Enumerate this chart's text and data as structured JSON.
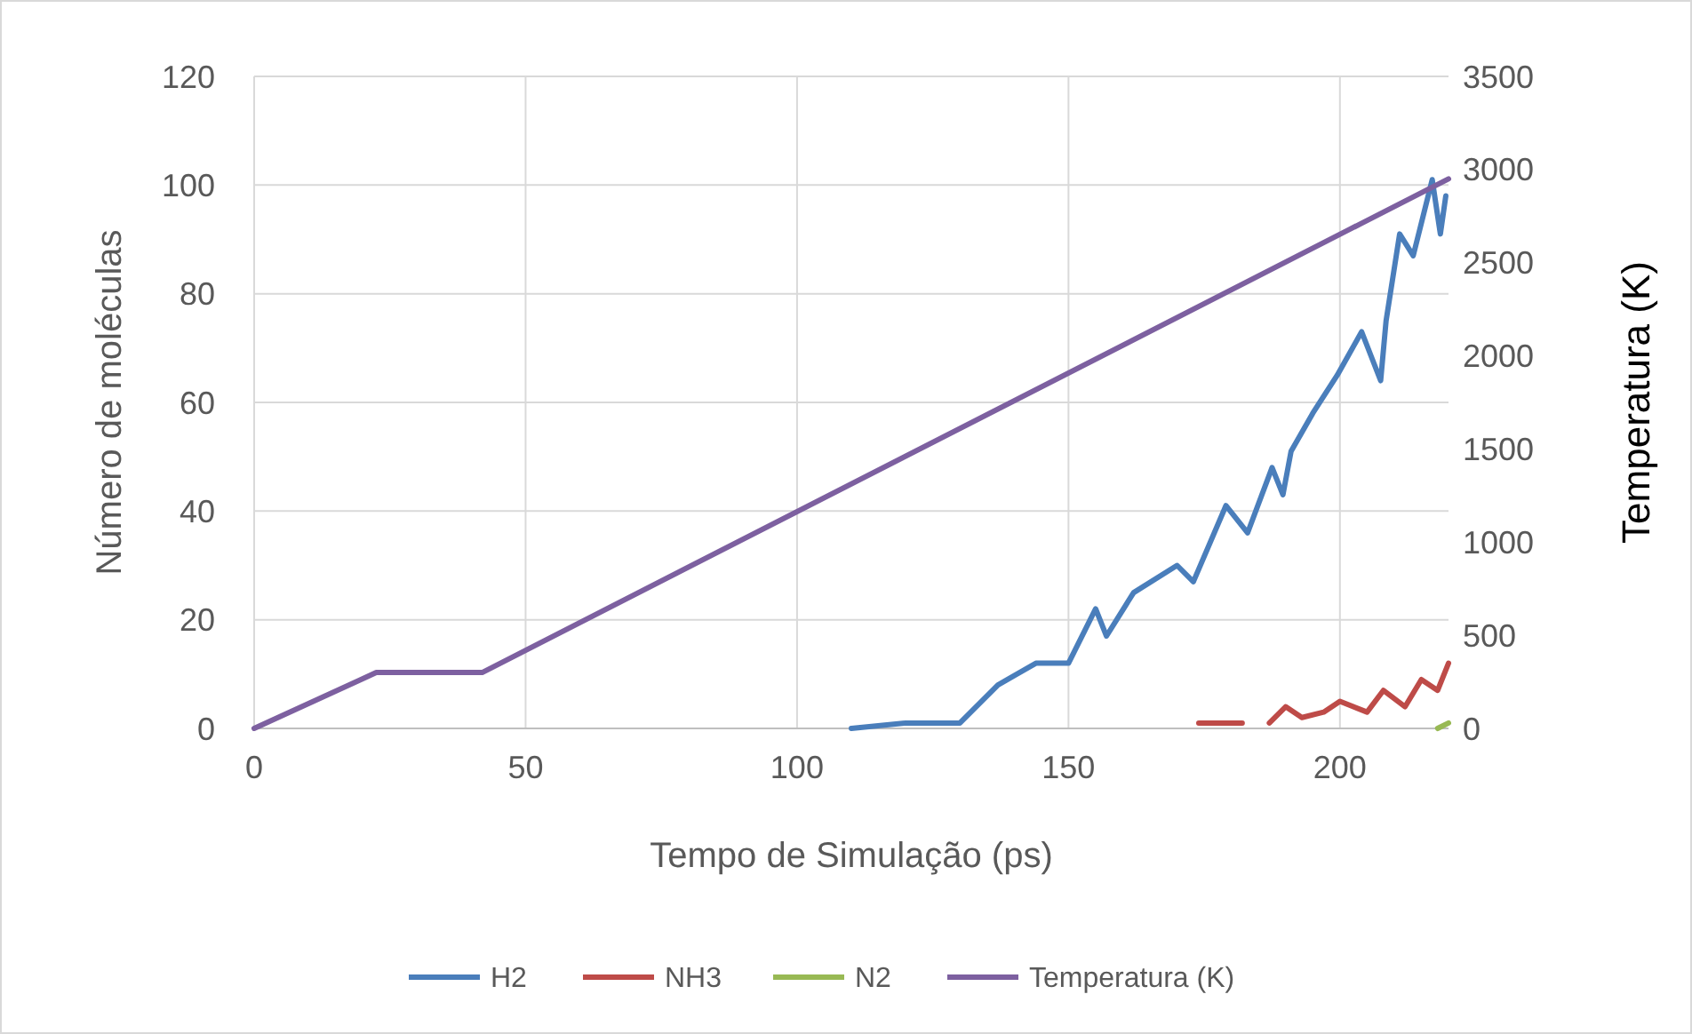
{
  "chart_data": {
    "type": "line",
    "xlabel": "Tempo de Simulação (ps)",
    "ylabel": "Número de moléculas",
    "y2label": "Temperatura (K)",
    "xlim": [
      0,
      220
    ],
    "xticks": [
      0,
      50,
      100,
      150,
      200
    ],
    "ylim": [
      0,
      120
    ],
    "yticks": [
      0,
      20,
      40,
      60,
      80,
      100,
      120
    ],
    "y2lim": [
      0,
      3500
    ],
    "y2ticks": [
      0,
      500,
      1000,
      1500,
      2000,
      2500,
      3000,
      3500
    ],
    "grid": true,
    "legend": "bottom",
    "marker": "none",
    "line_style": "solid",
    "series": [
      {
        "name": "H2",
        "color": "#4a7ebb",
        "x": [
          110,
          120,
          130,
          137,
          144,
          150,
          155,
          157,
          162,
          170,
          173,
          179,
          183,
          187.5,
          189.5,
          191,
          195,
          199.5,
          204,
          207.5,
          208.5,
          211,
          213.5,
          217,
          218.5,
          219.5
        ],
        "values": [
          0,
          1,
          1,
          8,
          12,
          12,
          22,
          17,
          25,
          30,
          27,
          41,
          36,
          48,
          43,
          51,
          58,
          65,
          73,
          64,
          75,
          91,
          87,
          101,
          91,
          98
        ]
      },
      {
        "name": "NH3",
        "color": "#be4b48",
        "x": [
          174,
          182,
          184,
          187,
          190,
          193,
          197,
          200,
          205,
          208,
          212,
          215,
          218,
          220
        ],
        "values": [
          1,
          1,
          null,
          1,
          4,
          2,
          3,
          5,
          3,
          7,
          4,
          9,
          7,
          12
        ]
      },
      {
        "name": "N2",
        "color": "#98b954",
        "x": [
          218,
          220
        ],
        "values": [
          0,
          1
        ]
      },
      {
        "name": "Temperatura (K)",
        "color": "#7d60a0",
        "axis": "y2",
        "x": [
          0,
          22.5,
          42,
          220
        ],
        "values": [
          0,
          300,
          300,
          2950
        ]
      }
    ]
  }
}
